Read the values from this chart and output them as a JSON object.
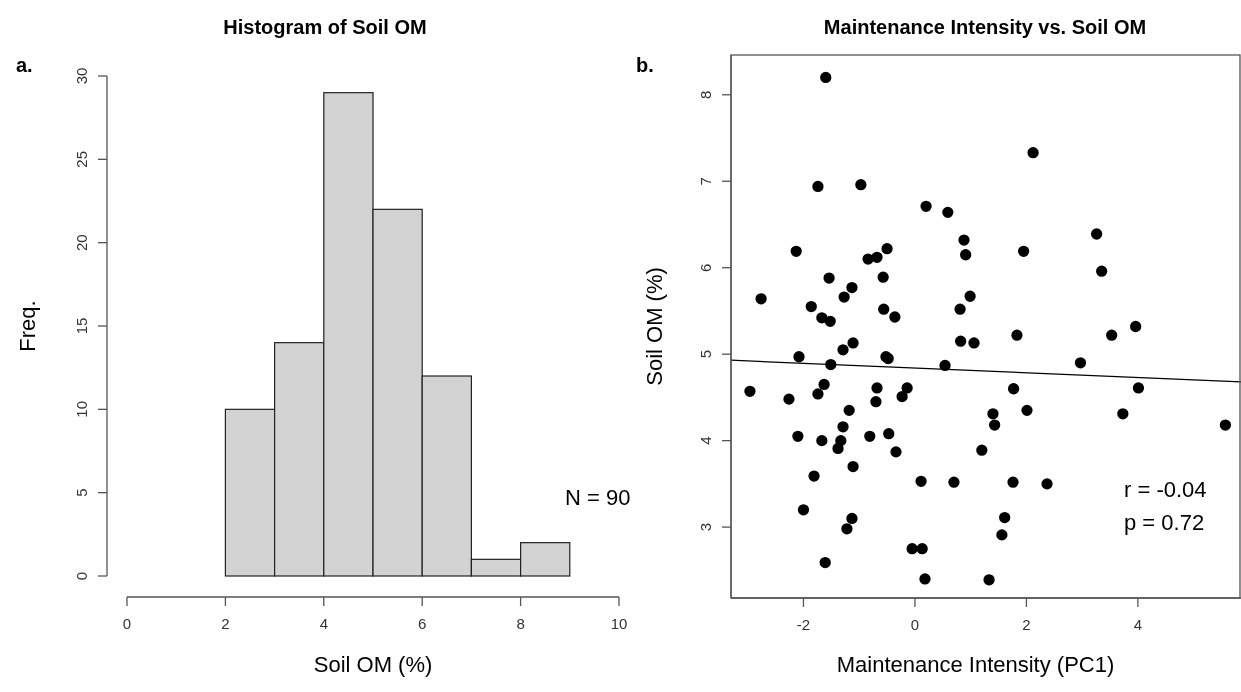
{
  "chart_data": [
    {
      "type": "histogram",
      "title": "Histogram of Soil OM",
      "xlabel": "Soil OM (%)",
      "ylabel": "Freq.",
      "bins": [
        2,
        3,
        4,
        5,
        6,
        7,
        8,
        9
      ],
      "values": [
        10,
        14,
        29,
        22,
        12,
        1,
        2
      ],
      "color": "#d3d3d3",
      "xlim": [
        0,
        10
      ],
      "xticks": [
        0,
        2,
        4,
        6,
        8,
        10
      ],
      "ylim": [
        0,
        30
      ],
      "yticks": [
        0,
        5,
        10,
        15,
        20,
        25,
        30
      ],
      "annotations": [
        "a.",
        "N = 90"
      ]
    },
    {
      "type": "scatter",
      "title": "Maintenance Intensity vs. Soil OM",
      "xlabel": "Maintenance Intensity (PC1)",
      "ylabel": "Soil OM (%)",
      "xlim": [
        -3.3,
        5.85
      ],
      "xticks": [
        -2,
        0,
        2,
        4
      ],
      "ylim": [
        2.18,
        8.46
      ],
      "yticks": [
        3,
        4,
        5,
        6,
        7,
        8
      ],
      "annotations": [
        "b.",
        "r = -0.04",
        "p = 0.72"
      ],
      "series": [
        {
          "type": "scatter",
          "marker": "circle",
          "color": "#000000",
          "x": [
            -1.6,
            -1.74,
            -0.97,
            -2.13,
            0.2,
            0.59,
            2.12,
            -0.84,
            -0.68,
            -0.5,
            -1.54,
            -0.57,
            -2.76,
            -1.27,
            -1.13,
            -1.86,
            -1.67,
            -1.52,
            -0.56,
            -0.36,
            -1.29,
            -1.11,
            -2.08,
            -1.51,
            -0.52,
            -0.48,
            -2.96,
            -2.26,
            -1.74,
            -1.63,
            -0.68,
            -0.14,
            -0.23,
            -0.7,
            -1.18,
            -1.29,
            -2.1,
            -1.67,
            -1.33,
            -1.38,
            -0.81,
            -0.47,
            -0.34,
            -1.11,
            -1.81,
            0.11,
            0.7,
            -2.0,
            -1.13,
            -1.22,
            -1.61,
            -0.05,
            0.13,
            0.18,
            0.88,
            0.91,
            1.95,
            3.26,
            3.35,
            0.99,
            0.81,
            0.82,
            1.06,
            1.83,
            3.53,
            3.96,
            0.54,
            2.97,
            1.77,
            4.01,
            1.4,
            2.01,
            3.73,
            1.43,
            5.57,
            1.2,
            1.76,
            2.37,
            1.61,
            1.56,
            1.33
          ],
          "values": [
            8.2,
            6.94,
            6.96,
            6.19,
            6.71,
            6.64,
            7.33,
            6.1,
            6.12,
            6.22,
            5.88,
            5.89,
            5.64,
            5.66,
            5.77,
            5.55,
            5.42,
            5.38,
            5.52,
            5.43,
            5.05,
            5.13,
            4.97,
            4.88,
            4.97,
            4.95,
            4.57,
            4.48,
            4.54,
            4.65,
            4.61,
            4.61,
            4.51,
            4.45,
            4.35,
            4.16,
            4.05,
            4.0,
            4.0,
            3.91,
            4.05,
            4.08,
            3.87,
            3.7,
            3.59,
            3.53,
            3.52,
            3.2,
            3.1,
            2.98,
            2.59,
            2.75,
            2.75,
            2.4,
            6.32,
            6.15,
            6.19,
            6.39,
            5.96,
            5.67,
            5.52,
            5.15,
            5.13,
            5.22,
            5.22,
            5.32,
            4.87,
            4.9,
            4.6,
            4.61,
            4.31,
            4.35,
            4.31,
            4.18,
            4.18,
            3.89,
            3.52,
            3.5,
            3.11,
            2.91,
            2.39
          ]
        },
        {
          "type": "line",
          "color": "#000000",
          "x": [
            -3.3,
            5.85
          ],
          "values": [
            4.93,
            4.68
          ]
        }
      ]
    }
  ]
}
